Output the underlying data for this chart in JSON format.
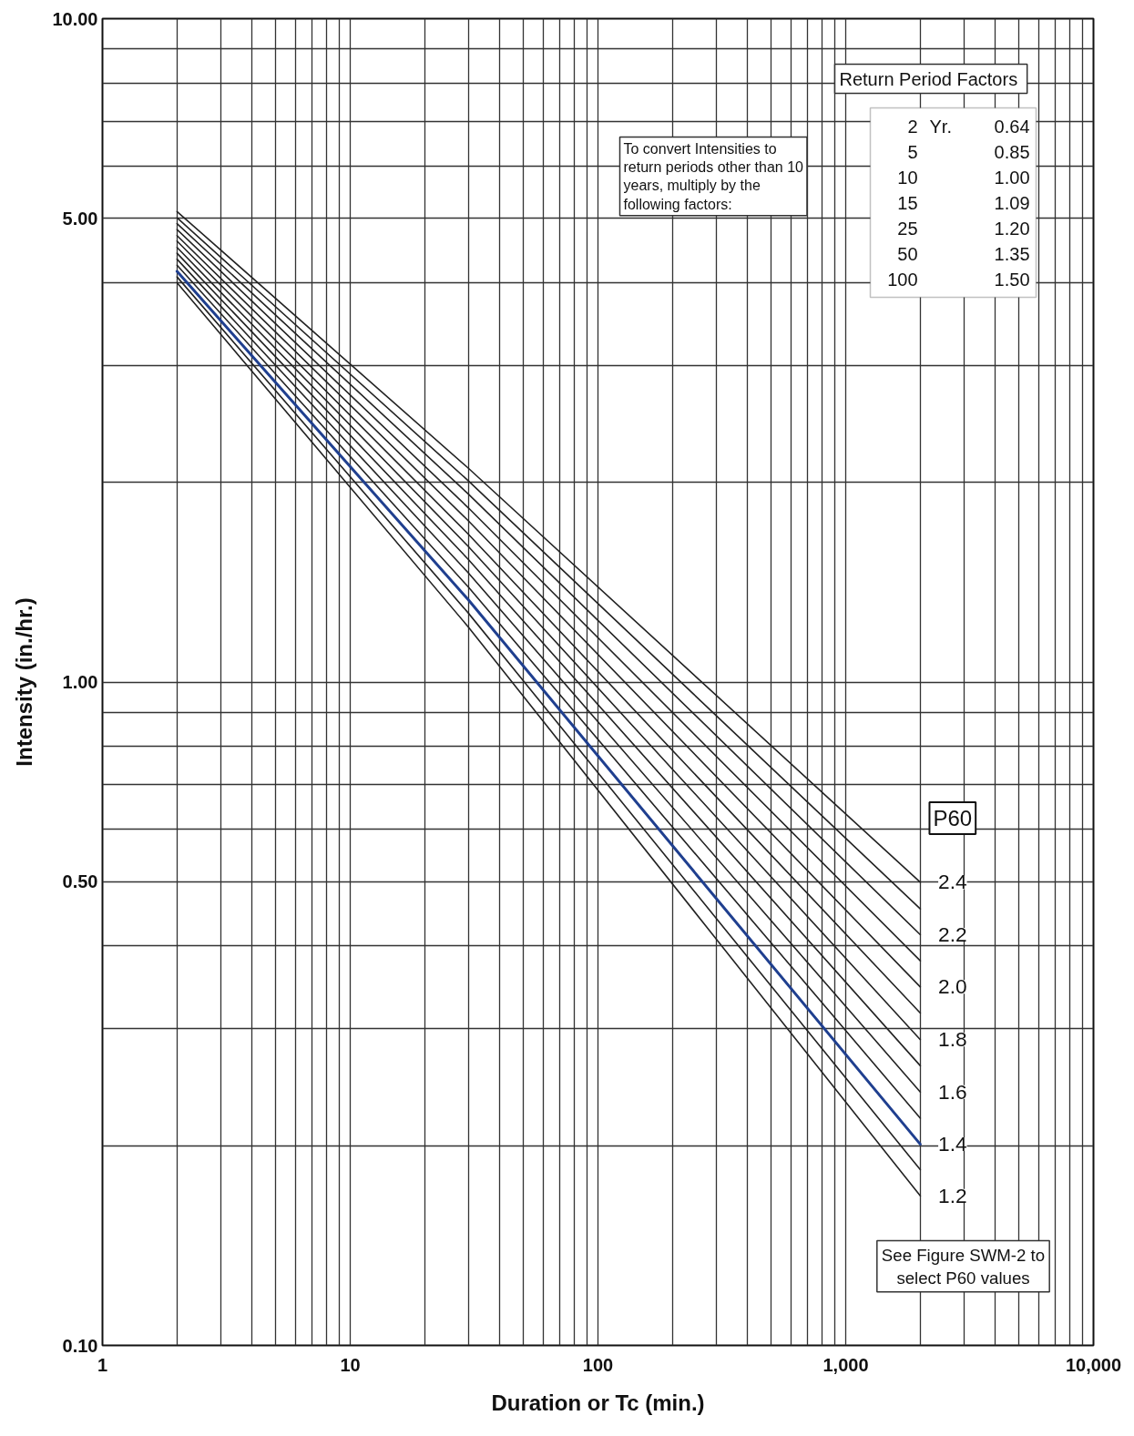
{
  "chart_data": {
    "type": "line",
    "xlabel": "Duration or Tc (min.)",
    "ylabel": "Intensity (in./hr.)",
    "legend_title": "P60",
    "x": [
      2,
      30,
      2000
    ],
    "series": [
      {
        "name": "2.4",
        "color": "#222222",
        "values": [
          5.12,
          2.1,
          0.499
        ]
      },
      {
        "color": "#222222",
        "values": [
          5.01,
          2.01,
          0.455
        ]
      },
      {
        "name": "2.2",
        "color": "#222222",
        "values": [
          4.91,
          1.92,
          0.416
        ]
      },
      {
        "color": "#222222",
        "values": [
          4.81,
          1.83,
          0.38
        ]
      },
      {
        "name": "2.0",
        "color": "#222222",
        "values": [
          4.71,
          1.75,
          0.347
        ]
      },
      {
        "color": "#222222",
        "values": [
          4.62,
          1.67,
          0.317
        ]
      },
      {
        "name": "1.8",
        "color": "#222222",
        "values": [
          4.52,
          1.6,
          0.289
        ]
      },
      {
        "color": "#222222",
        "values": [
          4.43,
          1.53,
          0.264
        ]
      },
      {
        "name": "1.6",
        "color": "#222222",
        "values": [
          4.34,
          1.46,
          0.241
        ]
      },
      {
        "color": "#222222",
        "values": [
          4.25,
          1.39,
          0.22
        ]
      },
      {
        "name": "1.4",
        "color": "#1f3f8f",
        "values": [
          4.16,
          1.33,
          0.201
        ]
      },
      {
        "color": "#222222",
        "values": [
          4.08,
          1.27,
          0.184
        ]
      },
      {
        "name": "1.2",
        "color": "#222222",
        "values": [
          4.0,
          1.21,
          0.168
        ]
      }
    ],
    "log": "xy",
    "xlim": [
      1,
      10000
    ],
    "xticks": [
      1,
      {
        "value": 2,
        "label": null
      },
      {
        "value": 3,
        "label": null
      },
      {
        "value": 4,
        "label": null
      },
      {
        "value": 5,
        "label": null
      },
      {
        "value": 6,
        "label": null
      },
      {
        "value": 7,
        "label": null
      },
      {
        "value": 8,
        "label": null
      },
      {
        "value": 9,
        "label": null
      },
      10,
      {
        "value": 20,
        "label": null
      },
      {
        "value": 30,
        "label": null
      },
      {
        "value": 40,
        "label": null
      },
      {
        "value": 50,
        "label": null
      },
      {
        "value": 60,
        "label": null
      },
      {
        "value": 70,
        "label": null
      },
      {
        "value": 80,
        "label": null
      },
      {
        "value": 90,
        "label": null
      },
      100,
      {
        "value": 200,
        "label": null
      },
      {
        "value": 300,
        "label": null
      },
      {
        "value": 400,
        "label": null
      },
      {
        "value": 500,
        "label": null
      },
      {
        "value": 600,
        "label": null
      },
      {
        "value": 700,
        "label": null
      },
      {
        "value": 800,
        "label": null
      },
      {
        "value": 900,
        "label": null
      },
      {
        "value": 1000,
        "label": "1,000"
      },
      {
        "value": 2000,
        "label": null
      },
      {
        "value": 3000,
        "label": null
      },
      {
        "value": 4000,
        "label": null
      },
      {
        "value": 5000,
        "label": null
      },
      {
        "value": 6000,
        "label": null
      },
      {
        "value": 7000,
        "label": null
      },
      {
        "value": 8000,
        "label": null
      },
      {
        "value": 9000,
        "label": null
      },
      {
        "value": 10000,
        "label": "10,000"
      }
    ],
    "ylim": [
      0.1,
      10
    ],
    "yticks": [
      {
        "value": 0.1,
        "label": "0.10"
      },
      {
        "value": 0.2,
        "label": null
      },
      {
        "value": 0.3,
        "label": null
      },
      {
        "value": 0.4,
        "label": null
      },
      {
        "value": 0.5,
        "label": "0.50"
      },
      {
        "value": 0.6,
        "label": null
      },
      {
        "value": 0.7,
        "label": null
      },
      {
        "value": 0.8,
        "label": null
      },
      {
        "value": 0.9,
        "label": null
      },
      {
        "value": 1,
        "label": "1.00"
      },
      {
        "value": 2,
        "label": null
      },
      {
        "value": 3,
        "label": null
      },
      {
        "value": 4,
        "label": null
      },
      {
        "value": 5,
        "label": "5.00"
      },
      {
        "value": 6,
        "label": null
      },
      {
        "value": 7,
        "label": null
      },
      {
        "value": 8,
        "label": null
      },
      {
        "value": 9,
        "label": null
      },
      {
        "value": 10,
        "label": "10.00"
      }
    ],
    "grid": true,
    "line_style": "solid",
    "annotations": [
      "To convert Intensities to return periods other than 10 years, multiply by the following factors:",
      "Return Period  Factors",
      "2 Yr. 0.64",
      "5 0.85",
      "10 1.00",
      "15 1.09",
      "25 1.20",
      "50 1.35",
      "100 1.50",
      "See Figure SWM-2 to select P60 values"
    ]
  }
}
